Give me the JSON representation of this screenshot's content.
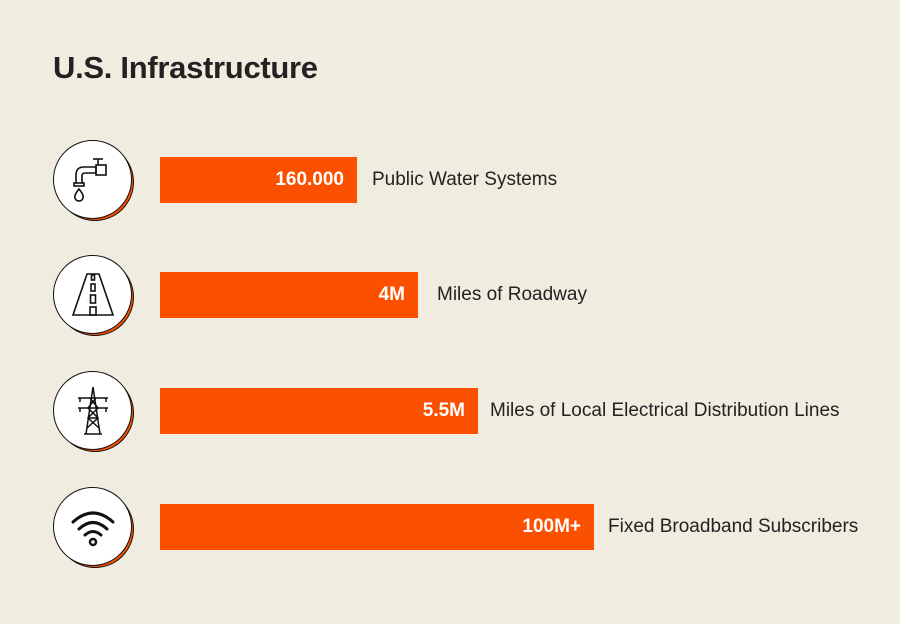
{
  "title": "U.S. Infrastructure",
  "accent_color": "#fb5000",
  "items": [
    {
      "icon": "faucet-icon",
      "value": "160.000",
      "label": "Public Water Systems"
    },
    {
      "icon": "road-icon",
      "value": "4M",
      "label": "Miles of Roadway"
    },
    {
      "icon": "power-tower-icon",
      "value": "5.5M",
      "label": "Miles of Local Electrical Distribution Lines"
    },
    {
      "icon": "wifi-icon",
      "value": "100M+",
      "label": "Fixed Broadband Subscribers"
    }
  ]
}
